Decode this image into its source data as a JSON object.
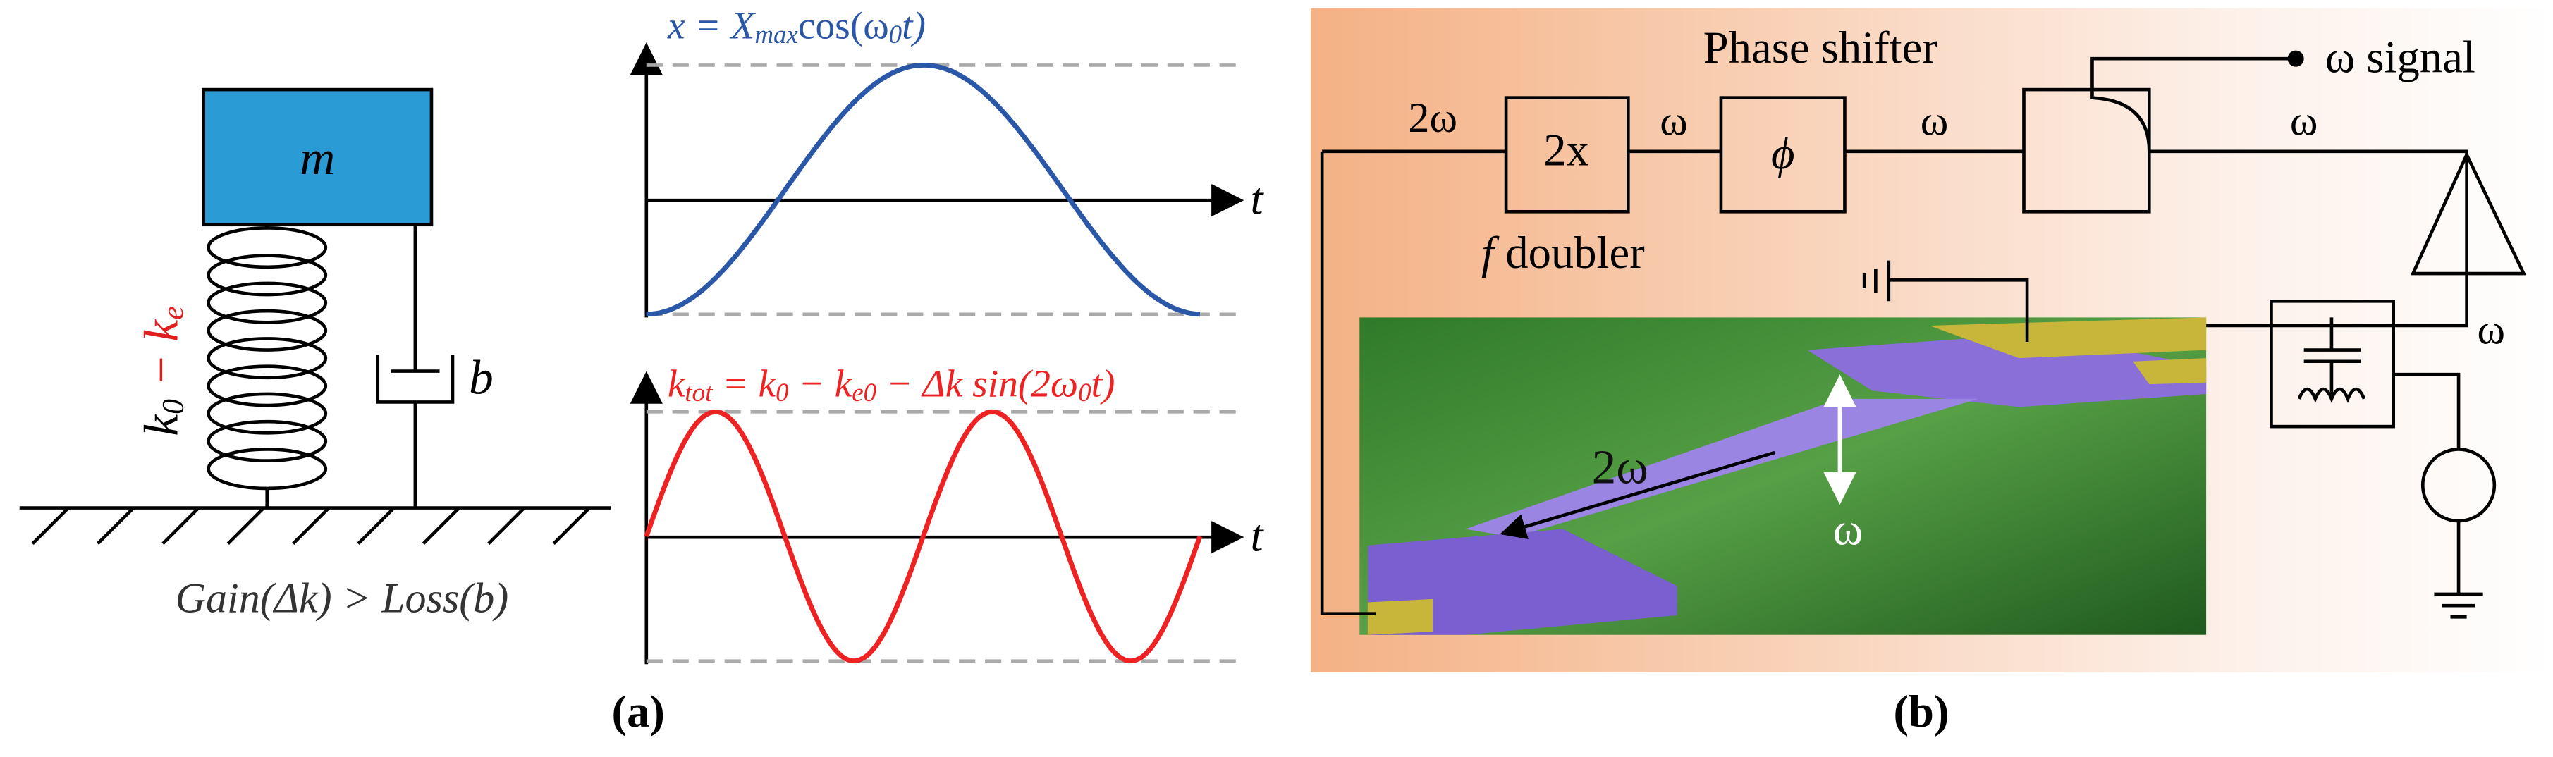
{
  "panel_a": {
    "mass_label": "m",
    "spring_label": [
      "k",
      "0",
      " − ",
      "k",
      "e"
    ],
    "damper_label": "b",
    "condition": "Gain(Δk) > Loss(b)",
    "top_plot": {
      "equation": [
        "x = X",
        "max",
        "cos(ω",
        "0",
        "t)"
      ],
      "axis_label": "t"
    },
    "bottom_plot": {
      "equation": [
        "k",
        "tot",
        " = k",
        "0",
        " − k",
        "e0",
        " − Δk sin(2ω",
        "0",
        "t)"
      ],
      "axis_label": "t"
    },
    "caption": "(a)"
  },
  "panel_b": {
    "phase_shifter": "Phase shifter",
    "signal_out": "ω signal",
    "wire_2w": "2ω",
    "doubler_box": "2x",
    "wire_w1": "ω",
    "phase_box": "ϕ",
    "wire_w2": "ω",
    "wire_w3": "ω",
    "doubler_label": [
      "f",
      " doubler"
    ],
    "wire_w4": "ω",
    "beam_2w": "2ω",
    "beam_w": "ω",
    "caption": "(b)"
  }
}
